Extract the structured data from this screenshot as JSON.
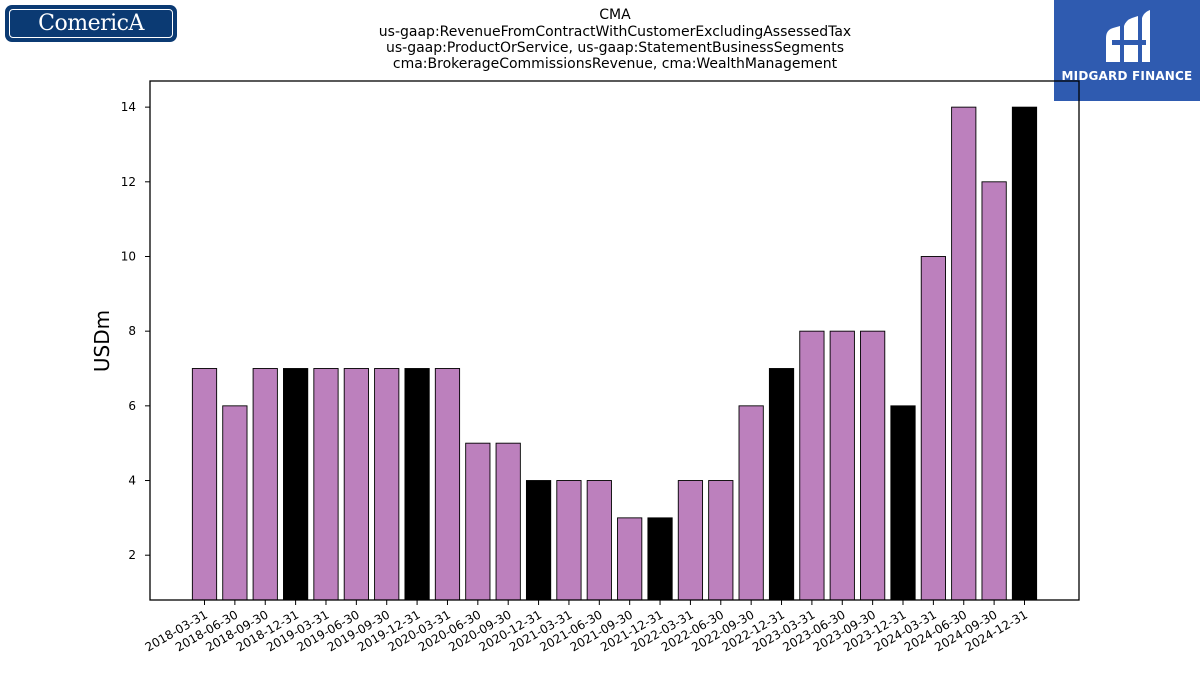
{
  "logos": {
    "left": {
      "text": "ComericA"
    },
    "right": {
      "text": "MIDGARD FINANCE"
    }
  },
  "colors": {
    "accent_bar": "#bc80bd",
    "highlight_bar": "#000000",
    "left_logo_bg": "#0b3a73",
    "right_logo_bg": "#2f5bb0"
  },
  "chart_data": {
    "type": "bar",
    "title": [
      "CMA",
      "us-gaap:RevenueFromContractWithCustomerExcludingAssessedTax",
      "us-gaap:ProductOrService, us-gaap:StatementBusinessSegments",
      "cma:BrokerageCommissionsRevenue, cma:WealthManagement"
    ],
    "xlabel": "",
    "ylabel": "USDm",
    "ylim": [
      0.8,
      14.7
    ],
    "yticks": [
      2,
      4,
      6,
      8,
      10,
      12,
      14
    ],
    "grid": false,
    "categories": [
      "2018-03-31",
      "2018-06-30",
      "2018-09-30",
      "2018-12-31",
      "2019-03-31",
      "2019-06-30",
      "2019-09-30",
      "2019-12-31",
      "2020-03-31",
      "2020-06-30",
      "2020-09-30",
      "2020-12-31",
      "2021-03-31",
      "2021-06-30",
      "2021-09-30",
      "2021-12-31",
      "2022-03-31",
      "2022-06-30",
      "2022-09-30",
      "2022-12-31",
      "2023-03-31",
      "2023-06-30",
      "2023-09-30",
      "2023-12-31",
      "2024-03-31",
      "2024-06-30",
      "2024-09-30",
      "2024-12-31"
    ],
    "values": [
      7,
      6,
      7,
      7,
      7,
      7,
      7,
      7,
      7,
      5,
      5,
      4,
      4,
      4,
      3,
      3,
      4,
      4,
      6,
      7,
      8,
      8,
      8,
      6,
      10,
      14,
      12,
      14
    ],
    "highlighted": [
      false,
      false,
      false,
      true,
      false,
      false,
      false,
      true,
      false,
      false,
      false,
      true,
      false,
      false,
      false,
      true,
      false,
      false,
      false,
      true,
      false,
      false,
      false,
      true,
      false,
      false,
      false,
      true
    ]
  }
}
